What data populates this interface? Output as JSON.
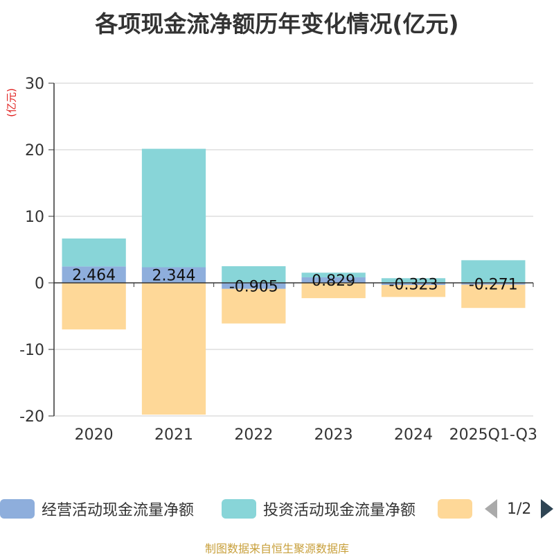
{
  "title": "各项现金流净额历年变化情况(亿元)",
  "unit_label": "(亿元)",
  "source_text": "制图数据来自恒生聚源数据库",
  "pager": {
    "text": "1/2"
  },
  "colors": {
    "operating": "#8eaedc",
    "investing": "#88d5d8",
    "financing": "#fed898",
    "unit": "#e0201f",
    "source": "#c8a03c"
  },
  "legend": [
    {
      "label": "经营活动现金流量净额",
      "color": "#8eaedc"
    },
    {
      "label": "投资活动现金流量净额",
      "color": "#88d5d8"
    },
    {
      "label": "",
      "color": "#fed898"
    }
  ],
  "chart_data": {
    "type": "bar",
    "stacked": true,
    "categories": [
      "2020",
      "2021",
      "2022",
      "2023",
      "2024",
      "2025Q1-Q3"
    ],
    "ylim": [
      -20,
      30
    ],
    "yticks": [
      30,
      20,
      10,
      0,
      -10,
      -20
    ],
    "series": [
      {
        "name": "经营活动现金流量净额",
        "color": "#8eaedc",
        "values": [
          2.464,
          2.344,
          -0.905,
          0.829,
          -0.323,
          -0.271
        ],
        "labels": [
          "2.464",
          "2.344",
          "-0.905",
          "0.829",
          "-0.323",
          "-0.271"
        ]
      },
      {
        "name": "投资活动现金流量净额",
        "color": "#88d5d8",
        "values": [
          4.2,
          17.8,
          2.5,
          0.7,
          0.7,
          3.4
        ]
      },
      {
        "name": "",
        "color": "#fed898",
        "values": [
          -7.0,
          -19.8,
          -5.2,
          -2.3,
          -1.8,
          -3.5
        ]
      }
    ]
  }
}
